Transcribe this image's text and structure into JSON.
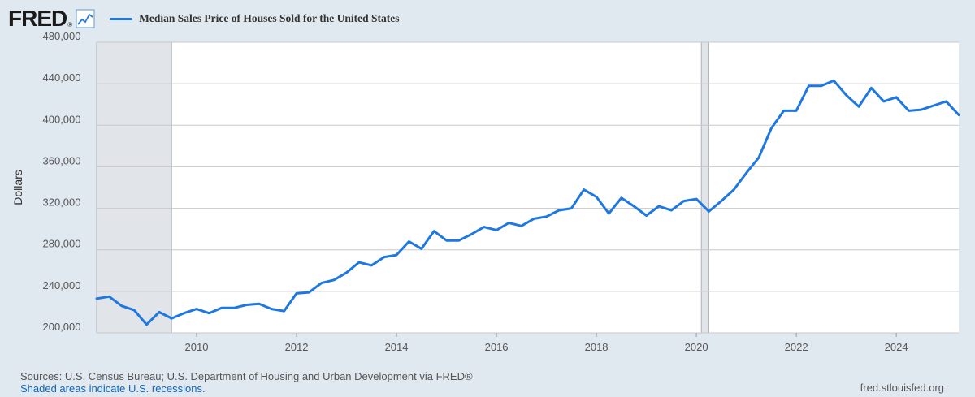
{
  "logo": {
    "text": "FRED",
    "reg": "®"
  },
  "legend": {
    "label": "Median Sales Price of Houses Sold for the United States",
    "color": "#1f77e0"
  },
  "footer": {
    "sources": "Sources: U.S. Census Bureau; U.S. Department of Housing and Urban Development via FRED®",
    "recession_note": "Shaded areas indicate U.S. recessions.",
    "site": "fred.stlouisfed.org"
  },
  "chart_data": {
    "type": "line",
    "title": "Median Sales Price of Houses Sold for the United States",
    "ylabel": "Dollars",
    "xlabel": "",
    "xlim": [
      2008.0,
      2025.25
    ],
    "ylim": [
      200000,
      480000
    ],
    "yticks": [
      200000,
      240000,
      280000,
      320000,
      360000,
      400000,
      440000,
      480000
    ],
    "ytick_labels": [
      "200,000",
      "240,000",
      "280,000",
      "320,000",
      "360,000",
      "400,000",
      "440,000",
      "480,000"
    ],
    "xticks": [
      2010,
      2012,
      2014,
      2016,
      2018,
      2020,
      2022,
      2024
    ],
    "xtick_labels": [
      "2010",
      "2012",
      "2014",
      "2016",
      "2018",
      "2020",
      "2022",
      "2024"
    ],
    "grid": true,
    "line_color": "#1f77e0",
    "recessions": [
      [
        2008.0,
        2009.5
      ],
      [
        2020.1,
        2020.25
      ]
    ],
    "series": [
      {
        "x": [
          2008.0,
          2008.25,
          2008.5,
          2008.75,
          2009.0,
          2009.25,
          2009.5,
          2009.75,
          2010.0,
          2010.25,
          2010.5,
          2010.75,
          2011.0,
          2011.25,
          2011.5,
          2011.75,
          2012.0,
          2012.25,
          2012.5,
          2012.75,
          2013.0,
          2013.25,
          2013.5,
          2013.75,
          2014.0,
          2014.25,
          2014.5,
          2014.75,
          2015.0,
          2015.25,
          2015.5,
          2015.75,
          2016.0,
          2016.25,
          2016.5,
          2016.75,
          2017.0,
          2017.25,
          2017.5,
          2017.75,
          2018.0,
          2018.25,
          2018.5,
          2018.75,
          2019.0,
          2019.25,
          2019.5,
          2019.75,
          2020.0,
          2020.25,
          2020.5,
          2020.75,
          2021.0,
          2021.25,
          2021.5,
          2021.75,
          2022.0,
          2022.25,
          2022.5,
          2022.75,
          2023.0,
          2023.25,
          2023.5,
          2023.75,
          2024.0,
          2024.25,
          2024.5,
          2024.75,
          2025.0,
          2025.25
        ],
        "y": [
          233000,
          235000,
          226000,
          222000,
          208000,
          220000,
          214000,
          219000,
          223000,
          219000,
          224000,
          224000,
          227000,
          228000,
          223000,
          221000,
          238000,
          239000,
          248000,
          251000,
          258000,
          268000,
          265000,
          273000,
          275000,
          288000,
          281000,
          298000,
          289000,
          289000,
          295000,
          302000,
          299000,
          306000,
          303000,
          310000,
          312000,
          318000,
          320000,
          338000,
          331000,
          315000,
          330000,
          322000,
          313000,
          322000,
          318000,
          327000,
          329000,
          317000,
          327000,
          338000,
          354000,
          369000,
          397000,
          414000,
          414000,
          438000,
          438000,
          443000,
          429000,
          418000,
          436000,
          423000,
          427000,
          414000,
          415000,
          419000,
          423000,
          410000
        ]
      }
    ]
  }
}
